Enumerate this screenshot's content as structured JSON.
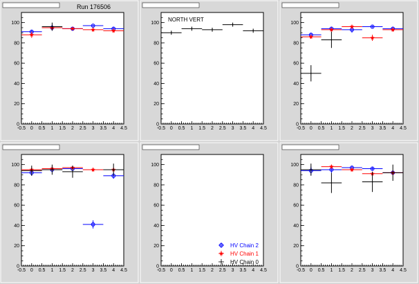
{
  "run_label": "Run 176506",
  "colors": {
    "hv_chain_2": "#0000ff",
    "hv_chain_1": "#ff0000",
    "hv_chain_0": "#000000",
    "frame": "#000000",
    "plot_bg": "#ffffff",
    "pad_bg": "#d8d8d8"
  },
  "legend": [
    {
      "label": "HV Chain 2",
      "series": "hv_chain_2",
      "marker": "open-circle"
    },
    {
      "label": "HV Chain 1",
      "series": "hv_chain_1",
      "marker": "star"
    },
    {
      "label": "HV Chain 0",
      "series": "hv_chain_0",
      "marker": "cross"
    }
  ],
  "chart_data": [
    {
      "type": "scatter",
      "title": "Run 176506",
      "note": "",
      "xlim": [
        -0.5,
        4.5
      ],
      "ylim": [
        0,
        110
      ],
      "xticks": [
        "-0.5",
        "0",
        "0.5",
        "1",
        "1.5",
        "2",
        "2.5",
        "3",
        "3.5",
        "4",
        "4.5"
      ],
      "yticks": [
        "0",
        "20",
        "40",
        "60",
        "80",
        "100"
      ],
      "series": [
        {
          "key": "hv_chain_2",
          "points": [
            {
              "x": 0,
              "y": 91,
              "xerr": 0.5,
              "yerr": 2
            },
            {
              "x": 1,
              "y": 95,
              "xerr": 0.5,
              "yerr": 3
            },
            {
              "x": 2,
              "y": 94,
              "xerr": 0.5,
              "yerr": 2
            },
            {
              "x": 3,
              "y": 97,
              "xerr": 0.5,
              "yerr": 1
            },
            {
              "x": 4,
              "y": 94,
              "xerr": 0.5,
              "yerr": 2
            }
          ]
        },
        {
          "key": "hv_chain_1",
          "points": [
            {
              "x": 0,
              "y": 88,
              "xerr": 0.5,
              "yerr": 3
            },
            {
              "x": 1,
              "y": 95,
              "xerr": 0.5,
              "yerr": 2
            },
            {
              "x": 2,
              "y": 94,
              "xerr": 0.5,
              "yerr": 1
            },
            {
              "x": 3,
              "y": 93,
              "xerr": 0.5,
              "yerr": 2
            },
            {
              "x": 4,
              "y": 92,
              "xerr": 0.5,
              "yerr": 2
            }
          ]
        },
        {
          "key": "hv_chain_0",
          "points": [
            {
              "x": 1,
              "y": 96,
              "xerr": 0.5,
              "yerr": 4
            }
          ]
        }
      ]
    },
    {
      "type": "scatter",
      "title": "",
      "note": "NORTH VERT",
      "xlim": [
        -0.5,
        4.5
      ],
      "ylim": [
        0,
        110
      ],
      "xticks": [
        "-0.5",
        "0",
        "0.5",
        "1",
        "1.5",
        "2",
        "2.5",
        "3",
        "3.5",
        "4",
        "4.5"
      ],
      "yticks": [
        "0",
        "20",
        "40",
        "60",
        "80",
        "100"
      ],
      "series": [
        {
          "key": "hv_chain_0",
          "points": [
            {
              "x": 0,
              "y": 90,
              "xerr": 0.5,
              "yerr": 2
            },
            {
              "x": 1,
              "y": 94,
              "xerr": 0.5,
              "yerr": 2
            },
            {
              "x": 2,
              "y": 93,
              "xerr": 0.5,
              "yerr": 2
            },
            {
              "x": 3,
              "y": 98,
              "xerr": 0.5,
              "yerr": 2
            },
            {
              "x": 4,
              "y": 92,
              "xerr": 0.5,
              "yerr": 2
            }
          ]
        }
      ]
    },
    {
      "type": "scatter",
      "title": "",
      "note": "",
      "xlim": [
        -0.5,
        4.5
      ],
      "ylim": [
        0,
        110
      ],
      "xticks": [
        "-0.5",
        "0",
        "0.5",
        "1",
        "1.5",
        "2",
        "2.5",
        "3",
        "3.5",
        "4",
        "4.5"
      ],
      "yticks": [
        "0",
        "20",
        "40",
        "60",
        "80",
        "100"
      ],
      "series": [
        {
          "key": "hv_chain_2",
          "points": [
            {
              "x": 0,
              "y": 88,
              "xerr": 0.5,
              "yerr": 2
            },
            {
              "x": 1,
              "y": 94,
              "xerr": 0.5,
              "yerr": 2
            },
            {
              "x": 2,
              "y": 93,
              "xerr": 0.5,
              "yerr": 3
            },
            {
              "x": 3,
              "y": 96,
              "xerr": 0.5,
              "yerr": 1
            },
            {
              "x": 4,
              "y": 94,
              "xerr": 0.5,
              "yerr": 2
            }
          ]
        },
        {
          "key": "hv_chain_1",
          "points": [
            {
              "x": 0,
              "y": 86,
              "xerr": 0.5,
              "yerr": 2
            },
            {
              "x": 1,
              "y": 93,
              "xerr": 0.5,
              "yerr": 2
            },
            {
              "x": 2,
              "y": 96,
              "xerr": 0.5,
              "yerr": 2
            },
            {
              "x": 3,
              "y": 85,
              "xerr": 0.5,
              "yerr": 3
            },
            {
              "x": 4,
              "y": 93,
              "xerr": 0.5,
              "yerr": 2
            }
          ]
        },
        {
          "key": "hv_chain_0",
          "points": [
            {
              "x": 0,
              "y": 50,
              "xerr": 0.5,
              "yerr": 8
            },
            {
              "x": 1,
              "y": 83,
              "xerr": 0.5,
              "yerr": 8
            }
          ]
        }
      ]
    },
    {
      "type": "scatter",
      "title": "",
      "note": "",
      "xlim": [
        -0.5,
        4.5
      ],
      "ylim": [
        0,
        110
      ],
      "xticks": [
        "-0.5",
        "0",
        "0.5",
        "1",
        "1.5",
        "2",
        "2.5",
        "3",
        "3.5",
        "4",
        "4.5"
      ],
      "yticks": [
        "0",
        "20",
        "40",
        "60",
        "80",
        "100"
      ],
      "series": [
        {
          "key": "hv_chain_2",
          "points": [
            {
              "x": 0,
              "y": 92,
              "xerr": 0.5,
              "yerr": 3
            },
            {
              "x": 1,
              "y": 95,
              "xerr": 0.5,
              "yerr": 3
            },
            {
              "x": 2,
              "y": 96,
              "xerr": 0.5,
              "yerr": 3
            },
            {
              "x": 3,
              "y": 41,
              "xerr": 0.5,
              "yerr": 4
            },
            {
              "x": 4,
              "y": 89,
              "xerr": 0.5,
              "yerr": 3
            }
          ]
        },
        {
          "key": "hv_chain_1",
          "points": [
            {
              "x": 0,
              "y": 95,
              "xerr": 0.5,
              "yerr": 2
            },
            {
              "x": 1,
              "y": 96,
              "xerr": 0.5,
              "yerr": 2
            },
            {
              "x": 2,
              "y": 97,
              "xerr": 0.5,
              "yerr": 2
            },
            {
              "x": 3,
              "y": 95,
              "xerr": 0.5,
              "yerr": 2
            },
            {
              "x": 4,
              "y": 95,
              "xerr": 0.5,
              "yerr": 2
            }
          ]
        },
        {
          "key": "hv_chain_0",
          "points": [
            {
              "x": 0,
              "y": 94,
              "xerr": 0.5,
              "yerr": 5
            },
            {
              "x": 1,
              "y": 95,
              "xerr": 0.5,
              "yerr": 5
            },
            {
              "x": 2,
              "y": 93,
              "xerr": 0.5,
              "yerr": 6
            },
            {
              "x": 4,
              "y": 95,
              "xerr": 0.5,
              "yerr": 6
            }
          ]
        }
      ]
    },
    {
      "type": "scatter",
      "title": "",
      "note": "",
      "xlim": [
        -0.5,
        4.5
      ],
      "ylim": [
        0,
        110
      ],
      "xticks": [
        "-0.5",
        "0",
        "0.5",
        "1",
        "1.5",
        "2",
        "2.5",
        "3",
        "3.5",
        "4",
        "4.5"
      ],
      "yticks": [
        "0",
        "20",
        "40",
        "60",
        "80",
        "100"
      ],
      "series": []
    },
    {
      "type": "scatter",
      "title": "",
      "note": "",
      "xlim": [
        -0.5,
        4.5
      ],
      "ylim": [
        0,
        110
      ],
      "xticks": [
        "-0.5",
        "0",
        "0.5",
        "1",
        "1.5",
        "2",
        "2.5",
        "3",
        "3.5",
        "4",
        "4.5"
      ],
      "yticks": [
        "0",
        "20",
        "40",
        "60",
        "80",
        "100"
      ],
      "series": [
        {
          "key": "hv_chain_2",
          "points": [
            {
              "x": 0,
              "y": 94,
              "xerr": 0.5,
              "yerr": 4
            },
            {
              "x": 1,
              "y": 95,
              "xerr": 0.5,
              "yerr": 3
            },
            {
              "x": 2,
              "y": 97,
              "xerr": 0.5,
              "yerr": 2
            },
            {
              "x": 3,
              "y": 96,
              "xerr": 0.5,
              "yerr": 2
            },
            {
              "x": 4,
              "y": 92,
              "xerr": 0.5,
              "yerr": 2
            }
          ]
        },
        {
          "key": "hv_chain_1",
          "points": [
            {
              "x": 1,
              "y": 98,
              "xerr": 0.5,
              "yerr": 2
            },
            {
              "x": 2,
              "y": 95,
              "xerr": 0.5,
              "yerr": 2
            },
            {
              "x": 3,
              "y": 91,
              "xerr": 0.5,
              "yerr": 2
            },
            {
              "x": 4,
              "y": 92,
              "xerr": 0.5,
              "yerr": 2
            }
          ]
        },
        {
          "key": "hv_chain_0",
          "points": [
            {
              "x": 0,
              "y": 95,
              "xerr": 0.5,
              "yerr": 6
            },
            {
              "x": 1,
              "y": 82,
              "xerr": 0.5,
              "yerr": 10
            },
            {
              "x": 3,
              "y": 83,
              "xerr": 0.5,
              "yerr": 10
            },
            {
              "x": 4,
              "y": 92,
              "xerr": 0.5,
              "yerr": 8
            }
          ]
        }
      ]
    }
  ]
}
